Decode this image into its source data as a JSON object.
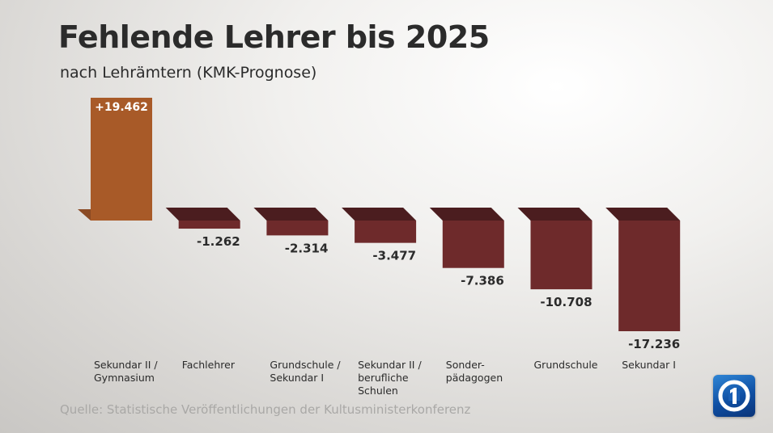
{
  "chart_data": {
    "type": "bar",
    "title": "Fehlende Lehrer bis 2025",
    "subtitle": "nach Lehrämtern (KMK-Prognose)",
    "xlabel": "",
    "ylabel": "",
    "categories": [
      [
        "Sekundar II /",
        "Gymnasium"
      ],
      [
        "Fachlehrer"
      ],
      [
        "Grundschule /",
        "Sekundar I"
      ],
      [
        "Sekundar II /",
        "berufliche",
        "Schulen"
      ],
      [
        "Sonder-",
        "pädagogen"
      ],
      [
        "Grundschule"
      ],
      [
        "Sekundar I"
      ]
    ],
    "values": [
      19462,
      -1262,
      -2314,
      -3477,
      -7386,
      -10708,
      -17236
    ],
    "value_labels": [
      "+19.462",
      "-1.262",
      "-2.314",
      "-3.477",
      "-7.386",
      "-10.708",
      "-17.236"
    ],
    "ylim": [
      -17236,
      19462
    ],
    "grid": false,
    "legend": "none"
  },
  "source": "Quelle: Statistische Veröffentlichungen der Kultusministerkonferenz",
  "colors": {
    "positive_front": "#a85a28",
    "positive_top": "#b8683a",
    "negative_front": "#6e2a2b",
    "negative_top": "#4b1d1f",
    "text": "#2b2b2b",
    "label_on_bar": "#ffffff"
  },
  "logo": {
    "name": "ARD Das Erste logo",
    "text": "1"
  }
}
